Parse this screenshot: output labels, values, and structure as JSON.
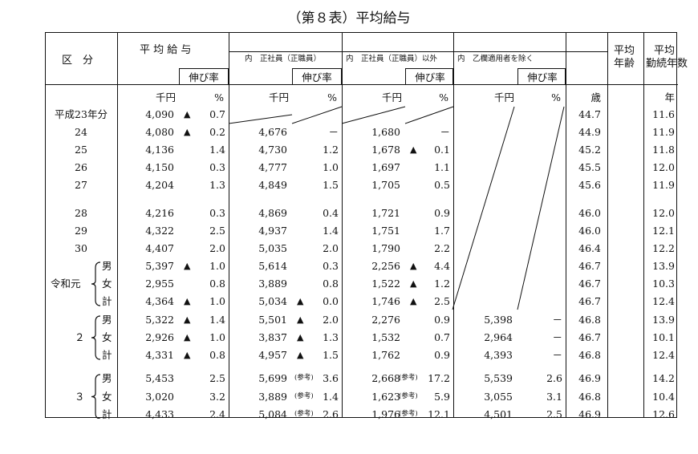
{
  "title": "（第８表）平均給与",
  "headers": {
    "kubun": "区　分",
    "avg_salary": "平 均 給 与",
    "growth": "伸び率",
    "regular": "内　正社員（正職員）",
    "non_regular": "内　正社員（正職員）以外",
    "excl_b": "内　乙欄適用者を除く",
    "avg_age_1": "平均",
    "avg_age_2": "年齢",
    "avg_years_1": "平均",
    "avg_years_2": "勤続年数"
  },
  "units": {
    "sen_yen": "千円",
    "percent": "%",
    "age": "歳",
    "year": "年"
  },
  "symbols": {
    "minus_triangle": "▲",
    "dash": "－",
    "ref": "(参考)"
  },
  "groups": {
    "reiwa_gan": "令和元",
    "r2": "２",
    "r3": "３",
    "male": "男",
    "female": "女",
    "total": "計"
  },
  "rows": [
    {
      "label": "平成23年分",
      "avg": "4,090",
      "avg_neg": true,
      "avg_g": "0.7",
      "reg": "",
      "reg_neg": false,
      "reg_g": "",
      "non": "",
      "non_neg": false,
      "non_g": "",
      "exb": "",
      "exb_g": "",
      "age": "44.7",
      "years": "11.6"
    },
    {
      "label": "24",
      "avg": "4,080",
      "avg_neg": true,
      "avg_g": "0.2",
      "reg": "4,676",
      "reg_neg": false,
      "reg_g": "－",
      "non": "1,680",
      "non_neg": false,
      "non_g": "－",
      "exb": "",
      "exb_g": "",
      "age": "44.9",
      "years": "11.9"
    },
    {
      "label": "25",
      "avg": "4,136",
      "avg_neg": false,
      "avg_g": "1.4",
      "reg": "4,730",
      "reg_neg": false,
      "reg_g": "1.2",
      "non": "1,678",
      "non_neg": true,
      "non_g": "0.1",
      "exb": "",
      "exb_g": "",
      "age": "45.2",
      "years": "11.8"
    },
    {
      "label": "26",
      "avg": "4,150",
      "avg_neg": false,
      "avg_g": "0.3",
      "reg": "4,777",
      "reg_neg": false,
      "reg_g": "1.0",
      "non": "1,697",
      "non_neg": false,
      "non_g": "1.1",
      "exb": "",
      "exb_g": "",
      "age": "45.5",
      "years": "12.0"
    },
    {
      "label": "27",
      "avg": "4,204",
      "avg_neg": false,
      "avg_g": "1.3",
      "reg": "4,849",
      "reg_neg": false,
      "reg_g": "1.5",
      "non": "1,705",
      "non_neg": false,
      "non_g": "0.5",
      "exb": "",
      "exb_g": "",
      "age": "45.6",
      "years": "11.9"
    },
    {
      "label": "28",
      "avg": "4,216",
      "avg_neg": false,
      "avg_g": "0.3",
      "reg": "4,869",
      "reg_neg": false,
      "reg_g": "0.4",
      "non": "1,721",
      "non_neg": false,
      "non_g": "0.9",
      "exb": "",
      "exb_g": "",
      "age": "46.0",
      "years": "12.0"
    },
    {
      "label": "29",
      "avg": "4,322",
      "avg_neg": false,
      "avg_g": "2.5",
      "reg": "4,937",
      "reg_neg": false,
      "reg_g": "1.4",
      "non": "1,751",
      "non_neg": false,
      "non_g": "1.7",
      "exb": "",
      "exb_g": "",
      "age": "46.0",
      "years": "12.1"
    },
    {
      "label": "30",
      "avg": "4,407",
      "avg_neg": false,
      "avg_g": "2.0",
      "reg": "5,035",
      "reg_neg": false,
      "reg_g": "2.0",
      "non": "1,790",
      "non_neg": false,
      "non_g": "2.2",
      "exb": "",
      "exb_g": "",
      "age": "46.4",
      "years": "12.2"
    },
    {
      "label": "男",
      "avg": "5,397",
      "avg_neg": true,
      "avg_g": "1.0",
      "reg": "5,614",
      "reg_neg": false,
      "reg_g": "0.3",
      "non": "2,256",
      "non_neg": true,
      "non_g": "4.4",
      "exb": "",
      "exb_g": "",
      "age": "46.7",
      "years": "13.9"
    },
    {
      "label": "女",
      "avg": "2,955",
      "avg_neg": false,
      "avg_g": "0.8",
      "reg": "3,889",
      "reg_neg": false,
      "reg_g": "0.8",
      "non": "1,522",
      "non_neg": true,
      "non_g": "1.2",
      "exb": "",
      "exb_g": "",
      "age": "46.7",
      "years": "10.3"
    },
    {
      "label": "計",
      "avg": "4,364",
      "avg_neg": true,
      "avg_g": "1.0",
      "reg": "5,034",
      "reg_neg": true,
      "reg_g": "0.0",
      "non": "1,746",
      "non_neg": true,
      "non_g": "2.5",
      "exb": "",
      "exb_g": "",
      "age": "46.7",
      "years": "12.4"
    },
    {
      "label": "男",
      "avg": "5,322",
      "avg_neg": true,
      "avg_g": "1.4",
      "reg": "5,501",
      "reg_neg": true,
      "reg_g": "2.0",
      "non": "2,276",
      "non_neg": false,
      "non_g": "0.9",
      "exb": "5,398",
      "exb_g": "－",
      "age": "46.8",
      "years": "13.9"
    },
    {
      "label": "女",
      "avg": "2,926",
      "avg_neg": true,
      "avg_g": "1.0",
      "reg": "3,837",
      "reg_neg": true,
      "reg_g": "1.3",
      "non": "1,532",
      "non_neg": false,
      "non_g": "0.7",
      "exb": "2,964",
      "exb_g": "－",
      "age": "46.7",
      "years": "10.1"
    },
    {
      "label": "計",
      "avg": "4,331",
      "avg_neg": true,
      "avg_g": "0.8",
      "reg": "4,957",
      "reg_neg": true,
      "reg_g": "1.5",
      "non": "1,762",
      "non_neg": false,
      "non_g": "0.9",
      "exb": "4,393",
      "exb_g": "－",
      "age": "46.8",
      "years": "12.4"
    },
    {
      "label": "男",
      "avg": "5,453",
      "avg_neg": false,
      "avg_g": "2.5",
      "reg": "5,699",
      "reg_neg": false,
      "reg_ref": true,
      "reg_g": "3.6",
      "non": "2,668",
      "non_neg": false,
      "non_ref": true,
      "non_g": "17.2",
      "exb": "5,539",
      "exb_g": "2.6",
      "age": "46.9",
      "years": "14.2"
    },
    {
      "label": "女",
      "avg": "3,020",
      "avg_neg": false,
      "avg_g": "3.2",
      "reg": "3,889",
      "reg_neg": false,
      "reg_ref": true,
      "reg_g": "1.4",
      "non": "1,623",
      "non_neg": false,
      "non_ref": true,
      "non_g": "5.9",
      "exb": "3,055",
      "exb_g": "3.1",
      "age": "46.8",
      "years": "10.4"
    },
    {
      "label": "計",
      "avg": "4,433",
      "avg_neg": false,
      "avg_g": "2.4",
      "reg": "5,084",
      "reg_neg": false,
      "reg_ref": true,
      "reg_g": "2.6",
      "non": "1,976",
      "non_neg": false,
      "non_ref": true,
      "non_g": "12.1",
      "exb": "4,501",
      "exb_g": "2.5",
      "age": "46.9",
      "years": "12.6"
    }
  ]
}
